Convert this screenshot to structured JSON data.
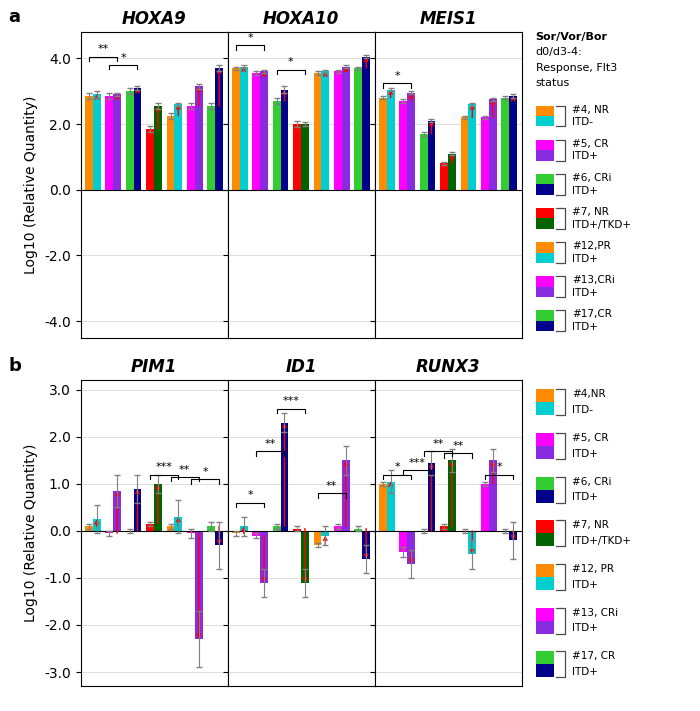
{
  "chart_data": [
    {
      "type": "bar",
      "title": "HOXA9",
      "ylabel": "Log10 (Relative Quantity)",
      "panel_label": "a",
      "categories": [
        null,
        null,
        null,
        null,
        null,
        null,
        null
      ],
      "series": [
        {
          "values": [
            2.85,
            2.85,
            3.0,
            1.85,
            2.25,
            2.55,
            2.55
          ],
          "errors": [
            0.1,
            0.1,
            0.1,
            0.1,
            0.1,
            0.1,
            0.1
          ],
          "colors": [
            "#FF8C00",
            "#FF00FF",
            "#32CD32",
            "#FF0000",
            "#FF8C00",
            "#FF00FF",
            "#32CD32"
          ]
        },
        {
          "values": [
            2.9,
            2.9,
            3.1,
            2.55,
            2.6,
            3.15,
            3.7
          ],
          "errors": [
            0.1,
            0.05,
            0.05,
            0.1,
            0.05,
            0.08,
            0.1
          ],
          "colors": [
            "#00CED1",
            "#8A2BE2",
            "#00008B",
            "#006400",
            "#00CED1",
            "#8A2BE2",
            "#00008B"
          ]
        }
      ],
      "ylim": [
        -4.5,
        4.8
      ],
      "yticks": [
        {
          "value": -4,
          "label": "-4.0"
        },
        {
          "value": -2,
          "label": "-2.0"
        },
        {
          "value": 0,
          "label": "0.0"
        },
        {
          "value": 2,
          "label": "2.0"
        },
        {
          "value": 4,
          "label": "4.0"
        }
      ],
      "grid": true,
      "tick_labels": "y",
      "annotations": [
        {
          "text": "**",
          "from": 0,
          "to": 1,
          "y": 4.05
        },
        {
          "text": "*",
          "from": 1,
          "to": 2,
          "y": 3.8
        }
      ]
    },
    {
      "type": "bar",
      "title": "HOXA10",
      "categories": [
        null,
        null,
        null,
        null,
        null,
        null,
        null
      ],
      "series": [
        {
          "values": [
            3.7,
            3.55,
            2.7,
            2.0,
            3.55,
            3.6,
            3.7
          ],
          "errors": [
            0.05,
            0.05,
            0.1,
            0.1,
            0.05,
            0.05,
            0.05
          ],
          "colors": [
            "#FF8C00",
            "#FF00FF",
            "#32CD32",
            "#FF0000",
            "#FF8C00",
            "#FF00FF",
            "#32CD32"
          ]
        },
        {
          "values": [
            3.75,
            3.6,
            3.05,
            2.0,
            3.6,
            3.75,
            4.05
          ],
          "errors": [
            0.05,
            0.05,
            0.1,
            0.05,
            0.05,
            0.05,
            0.05
          ],
          "colors": [
            "#00CED1",
            "#8A2BE2",
            "#00008B",
            "#006400",
            "#00CED1",
            "#8A2BE2",
            "#00008B"
          ]
        }
      ],
      "ylim": [
        -4.5,
        4.8
      ],
      "yticks": [
        {
          "value": -4,
          "label": "-4.0"
        },
        {
          "value": -2,
          "label": "-2.0"
        },
        {
          "value": 0,
          "label": "0.0"
        },
        {
          "value": 2,
          "label": "2.0"
        },
        {
          "value": 4,
          "label": "4.0"
        }
      ],
      "grid": true,
      "tick_labels": false,
      "annotations": [
        {
          "text": "*",
          "from": 0,
          "to": 1,
          "y": 4.4
        },
        {
          "text": "*",
          "from": 2,
          "to": 3,
          "y": 3.65
        }
      ]
    },
    {
      "type": "bar",
      "title": "MEIS1",
      "categories": [
        null,
        null,
        null,
        null,
        null,
        null,
        null
      ],
      "series": [
        {
          "values": [
            2.8,
            2.7,
            1.7,
            0.8,
            2.2,
            2.2,
            2.8
          ],
          "errors": [
            0.05,
            0.05,
            0.05,
            0.05,
            0.05,
            0.05,
            0.05
          ],
          "colors": [
            "#FF8C00",
            "#FF00FF",
            "#32CD32",
            "#FF0000",
            "#FF8C00",
            "#FF00FF",
            "#32CD32"
          ]
        },
        {
          "values": [
            3.05,
            2.95,
            2.1,
            1.1,
            2.6,
            2.75,
            2.85
          ],
          "errors": [
            0.05,
            0.05,
            0.05,
            0.05,
            0.05,
            0.05,
            0.05
          ],
          "colors": [
            "#00CED1",
            "#8A2BE2",
            "#00008B",
            "#006400",
            "#00CED1",
            "#8A2BE2",
            "#00008B"
          ]
        }
      ],
      "ylim": [
        -4.5,
        4.8
      ],
      "yticks": [
        {
          "value": -4,
          "label": "-4.0"
        },
        {
          "value": -2,
          "label": "-2.0"
        },
        {
          "value": 0,
          "label": "0.0"
        },
        {
          "value": 2,
          "label": "2.0"
        },
        {
          "value": 4,
          "label": "4.0"
        }
      ],
      "grid": true,
      "tick_labels": false,
      "annotations": [
        {
          "text": "*",
          "from": 0,
          "to": 1,
          "y": 3.25
        }
      ],
      "legend": "right",
      "legend_title": [
        "Sor/Vor/Bor",
        "d0/d3-4:",
        "Response, Flt3",
        "status"
      ],
      "legend_entries": [
        {
          "labels": [
            "#4, NR",
            "ITD-"
          ],
          "colors": [
            "#FF8C00",
            "#00CED1"
          ]
        },
        {
          "labels": [
            "#5, CR",
            "ITD+"
          ],
          "colors": [
            "#FF00FF",
            "#8A2BE2"
          ]
        },
        {
          "labels": [
            "#6, CRi",
            "ITD+"
          ],
          "colors": [
            "#32CD32",
            "#00008B"
          ]
        },
        {
          "labels": [
            "#7, NR",
            "ITD+/TKD+"
          ],
          "colors": [
            "#FF0000",
            "#006400"
          ]
        },
        {
          "labels": [
            "#12,PR",
            "ITD+"
          ],
          "colors": [
            "#FF8C00",
            "#00CED1"
          ]
        },
        {
          "labels": [
            "#13,CRi",
            "ITD+"
          ],
          "colors": [
            "#FF00FF",
            "#8A2BE2"
          ]
        },
        {
          "labels": [
            "#17,CR",
            "ITD+"
          ],
          "colors": [
            "#32CD32",
            "#00008B"
          ]
        }
      ]
    },
    {
      "type": "bar",
      "title": "PIM1",
      "ylabel": "Log10 (Relative Quantity)",
      "panel_label": "b",
      "categories": [
        null,
        null,
        null,
        null,
        null,
        null,
        null
      ],
      "series": [
        {
          "values": [
            0.1,
            -0.05,
            0.0,
            0.15,
            0.1,
            -0.05,
            0.1
          ],
          "errors": [
            0.05,
            0.05,
            0.05,
            0.05,
            0.05,
            0.1,
            0.1
          ],
          "colors": [
            "#FF8C00",
            "#FF00FF",
            "#32CD32",
            "#FF0000",
            "#FF8C00",
            "#FF00FF",
            "#32CD32"
          ]
        },
        {
          "values": [
            0.25,
            0.85,
            0.9,
            1.0,
            0.3,
            -2.3,
            -0.3
          ],
          "errors": [
            0.3,
            0.35,
            0.3,
            0.2,
            0.35,
            0.6,
            0.5
          ],
          "colors": [
            "#00CED1",
            "#8A2BE2",
            "#00008B",
            "#006400",
            "#00CED1",
            "#8A2BE2",
            "#00008B"
          ]
        }
      ],
      "ylim": [
        -3.3,
        3.2
      ],
      "yticks": [
        {
          "value": -3,
          "label": "-3.0"
        },
        {
          "value": -2,
          "label": "-2.0"
        },
        {
          "value": -1,
          "label": "-1.0"
        },
        {
          "value": 0,
          "label": "0.0"
        },
        {
          "value": 1,
          "label": "1.0"
        },
        {
          "value": 2,
          "label": "2.0"
        },
        {
          "value": 3,
          "label": "3.0"
        }
      ],
      "grid": true,
      "tick_labels": "y",
      "annotations": [
        {
          "text": "***",
          "from": 3,
          "to": 4,
          "y": 1.2
        },
        {
          "text": "**",
          "from": 4,
          "to": 5,
          "y": 1.15
        },
        {
          "text": "*",
          "from": 5,
          "to": 6,
          "y": 1.1
        }
      ]
    },
    {
      "type": "bar",
      "title": "ID1",
      "categories": [
        null,
        null,
        null,
        null,
        null,
        null,
        null
      ],
      "series": [
        {
          "values": [
            -0.05,
            -0.1,
            0.1,
            0.05,
            -0.3,
            0.1,
            0.05
          ],
          "errors": [
            0.05,
            0.05,
            0.05,
            0.05,
            0.05,
            0.05,
            0.05
          ],
          "colors": [
            "#FF8C00",
            "#FF00FF",
            "#32CD32",
            "#FF0000",
            "#FF8C00",
            "#FF00FF",
            "#32CD32"
          ]
        },
        {
          "values": [
            0.1,
            -1.1,
            2.3,
            -1.1,
            -0.1,
            1.5,
            -0.6
          ],
          "errors": [
            0.2,
            0.3,
            0.2,
            0.3,
            0.2,
            0.3,
            0.3
          ],
          "colors": [
            "#00CED1",
            "#8A2BE2",
            "#00008B",
            "#006400",
            "#00CED1",
            "#8A2BE2",
            "#00008B"
          ]
        }
      ],
      "ylim": [
        -3.3,
        3.2
      ],
      "yticks": [
        {
          "value": -3,
          "label": "-3.0"
        },
        {
          "value": -2,
          "label": "-2.0"
        },
        {
          "value": -1,
          "label": "-1.0"
        },
        {
          "value": 0,
          "label": "0.0"
        },
        {
          "value": 1,
          "label": "1.0"
        },
        {
          "value": 2,
          "label": "2.0"
        },
        {
          "value": 3,
          "label": "3.0"
        }
      ],
      "grid": true,
      "tick_labels": false,
      "annotations": [
        {
          "text": "*",
          "from": 0,
          "to": 1,
          "y": 0.6
        },
        {
          "text": "**",
          "from": 1,
          "to": 2,
          "y": 1.7
        },
        {
          "text": "***",
          "from": 2,
          "to": 3,
          "y": 2.6
        },
        {
          "text": "**",
          "from": 4,
          "to": 5,
          "y": 0.8
        }
      ]
    },
    {
      "type": "bar",
      "title": "RUNX3",
      "categories": [
        null,
        null,
        null,
        null,
        null,
        null,
        null
      ],
      "series": [
        {
          "values": [
            1.0,
            -0.45,
            0.0,
            0.1,
            0.0,
            1.0,
            0.0
          ],
          "errors": [
            0.05,
            0.1,
            0.05,
            0.05,
            0.05,
            0.05,
            0.05
          ],
          "colors": [
            "#FF8C00",
            "#FF00FF",
            "#32CD32",
            "#FF0000",
            "#FF8C00",
            "#FF00FF",
            "#32CD32"
          ]
        },
        {
          "values": [
            1.05,
            -0.7,
            1.45,
            1.5,
            -0.5,
            1.5,
            -0.2
          ],
          "errors": [
            0.25,
            0.3,
            0.25,
            0.25,
            0.3,
            0.25,
            0.4
          ],
          "colors": [
            "#00CED1",
            "#8A2BE2",
            "#00008B",
            "#006400",
            "#00CED1",
            "#8A2BE2",
            "#00008B"
          ]
        }
      ],
      "ylim": [
        -3.3,
        3.2
      ],
      "yticks": [
        {
          "value": -3,
          "label": "-3.0"
        },
        {
          "value": -2,
          "label": "-2.0"
        },
        {
          "value": -1,
          "label": "-1.0"
        },
        {
          "value": 0,
          "label": "0.0"
        },
        {
          "value": 1,
          "label": "1.0"
        },
        {
          "value": 2,
          "label": "2.0"
        },
        {
          "value": 3,
          "label": "3.0"
        }
      ],
      "grid": true,
      "tick_labels": false,
      "annotations": [
        {
          "text": "*",
          "from": 0,
          "to": 1,
          "y": 1.2
        },
        {
          "text": "***",
          "from": 1,
          "to": 2,
          "y": 1.3
        },
        {
          "text": "**",
          "from": 2,
          "to": 3,
          "y": 1.7
        },
        {
          "text": "**",
          "from": 3,
          "to": 4,
          "y": 1.65
        },
        {
          "text": "*",
          "from": 5,
          "to": 6,
          "y": 1.2
        }
      ],
      "legend": "right",
      "legend_entries": [
        {
          "labels": [
            "#4,NR",
            "ITD-"
          ],
          "colors": [
            "#FF8C00",
            "#00CED1"
          ]
        },
        {
          "labels": [
            "#5, CR",
            "ITD+"
          ],
          "colors": [
            "#FF00FF",
            "#8A2BE2"
          ]
        },
        {
          "labels": [
            "#6, CRi",
            "ITD+"
          ],
          "colors": [
            "#32CD32",
            "#00008B"
          ]
        },
        {
          "labels": [
            "#7, NR",
            "ITD+/TKD+"
          ],
          "colors": [
            "#FF0000",
            "#006400"
          ]
        },
        {
          "labels": [
            "#12, PR",
            "ITD+"
          ],
          "colors": [
            "#FF8C00",
            "#00CED1"
          ]
        },
        {
          "labels": [
            "#13, CRi",
            "ITD+"
          ],
          "colors": [
            "#FF00FF",
            "#8A2BE2"
          ]
        },
        {
          "labels": [
            "#17, CR",
            "ITD+"
          ],
          "colors": [
            "#32CD32",
            "#00008B"
          ]
        }
      ]
    }
  ]
}
